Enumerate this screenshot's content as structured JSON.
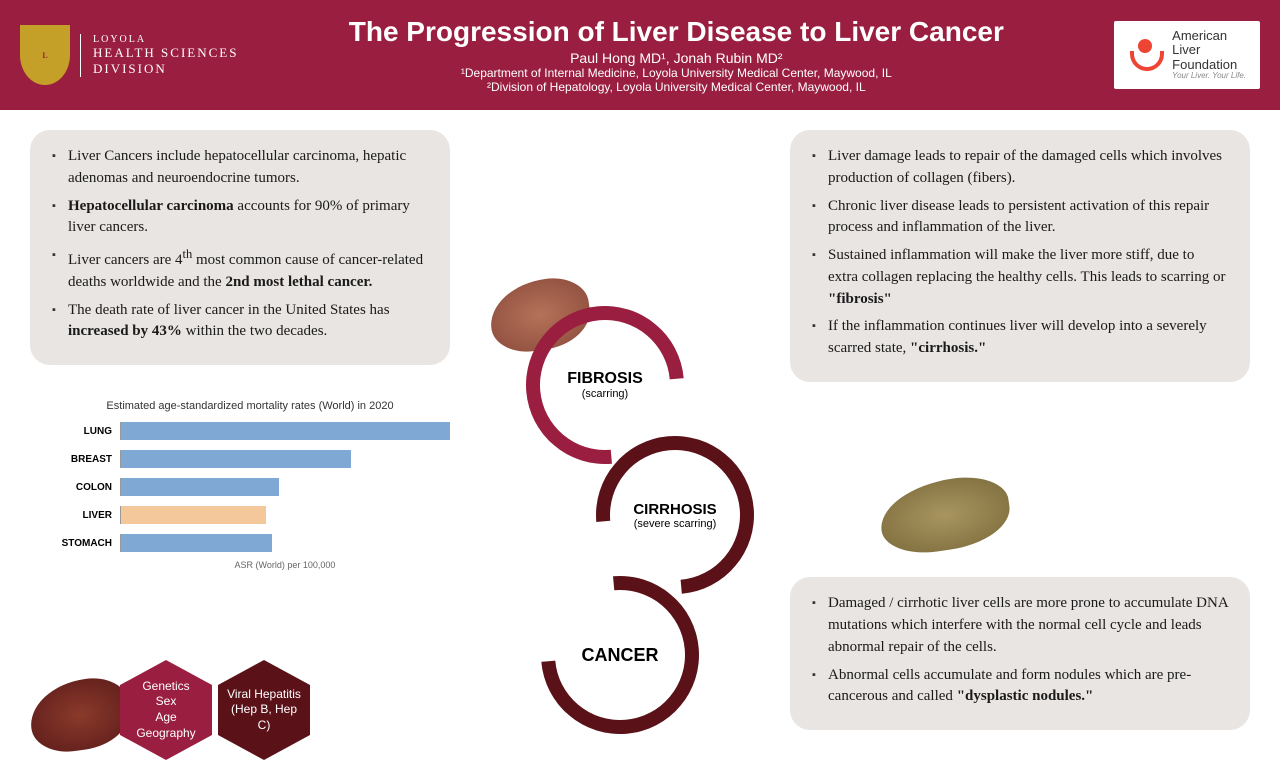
{
  "header": {
    "logo_left": {
      "line1": "LOYOLA",
      "line2": "HEALTH SCIENCES",
      "line3": "DIVISION"
    },
    "title": "The Progression of Liver Disease to Liver Cancer",
    "authors": "Paul Hong MD¹, Jonah Rubin MD²",
    "affil1": "¹Department of Internal Medicine, Loyola University Medical Center, Maywood, IL",
    "affil2": "²Division of Hepatology, Loyola University Medical Center, Maywood, IL",
    "logo_right": {
      "line1": "American",
      "line2": "Liver",
      "line3": "Foundation",
      "tag": "Your Liver. Your Life."
    }
  },
  "card_tl": {
    "b1a": "Liver Cancers include hepatocellular carcinoma, hepatic adenomas and neuroendocrine tumors.",
    "b2_bold": "Hepatocellular carcinoma",
    "b2_rest": " accounts for 90% of primary liver cancers.",
    "b3a": "Liver cancers are 4",
    "b3_sup": "th",
    "b3b": " most common cause of cancer-related deaths worldwide and the ",
    "b3_bold": "2nd most lethal cancer.",
    "b4a": "The death rate of liver cancer in the United States has ",
    "b4_bold": "increased by 43%",
    "b4b": " within the two decades."
  },
  "card_tr": {
    "b1": "Liver damage leads to repair of the damaged cells which involves production of collagen (fibers).",
    "b2": "Chronic liver disease leads to persistent activation of this repair process and inflammation of the liver.",
    "b3a": "Sustained inflammation will make the liver more stiff, due to extra collagen replacing the healthy cells. This leads to scarring or ",
    "b3_bold": "\"fibrosis\"",
    "b4a": "If the inflammation continues liver will develop into a severely scarred state, ",
    "b4_bold": "\"cirrhosis.\""
  },
  "card_br": {
    "b1": "Damaged / cirrhotic liver cells are more prone to accumulate DNA mutations which interfere with the normal cell cycle and leads abnormal repair of the cells.",
    "b2a": "Abnormal cells accumulate and form nodules which are pre-cancerous and called ",
    "b2_bold": "\"dysplastic nodules.\""
  },
  "chart": {
    "title": "Estimated age-standardized mortality rates (World) in 2020",
    "axis": "ASR (World) per 100,000",
    "categories": [
      "LUNG",
      "BREAST",
      "COLON",
      "LIVER",
      "STOMACH"
    ],
    "values": [
      100,
      70,
      48,
      44,
      46
    ],
    "colors": [
      "#7fa9d4",
      "#7fa9d4",
      "#7fa9d4",
      "#f4c89a",
      "#7fa9d4"
    ],
    "xmax": 100
  },
  "hex": {
    "h1": "Genetics\nSex\nAge\nGeography",
    "h2": "Viral Hepatitis (Hep B, Hep C)",
    "colors": [
      "#9a1e3f",
      "#5a1218"
    ]
  },
  "cycle": {
    "r1": "FIBROSIS",
    "r1_sub": "(scarring)",
    "r2": "CIRRHOSIS",
    "r2_sub": "(severe scarring)",
    "r3": "CANCER"
  }
}
